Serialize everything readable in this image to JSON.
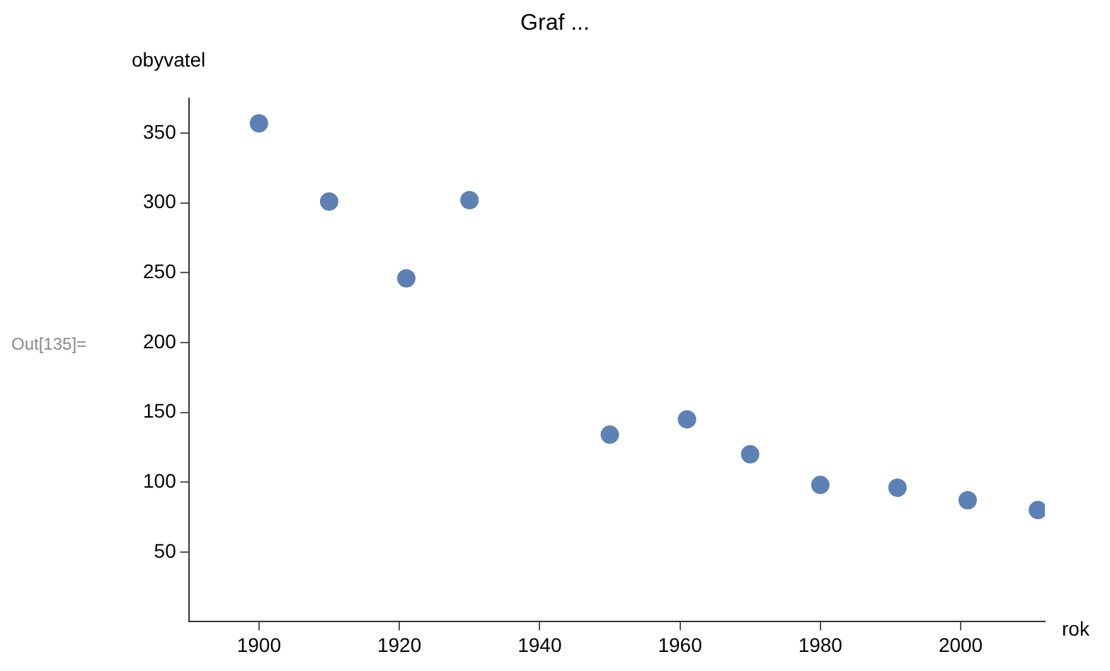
{
  "chart_data": {
    "type": "scatter",
    "title": "Graf ...",
    "xlabel": "rok",
    "ylabel": "obyvatel",
    "annotations": [
      "Out[135]="
    ],
    "x": [
      1900,
      1910,
      1921,
      1930,
      1950,
      1961,
      1970,
      1980,
      1991,
      2001,
      2011
    ],
    "series": [
      {
        "color": "#5e81b5",
        "values": [
          357,
          301,
          246,
          302,
          134,
          145,
          120,
          98,
          96,
          87,
          80
        ]
      }
    ],
    "xlim": [
      1890,
      2012
    ],
    "ylim": [
      0,
      375
    ],
    "xticks": [
      1900,
      1920,
      1940,
      1960,
      1980,
      2000
    ],
    "yticks": [
      50,
      100,
      150,
      200,
      250,
      300,
      350
    ],
    "grid": false,
    "legend": false,
    "marker": "circle"
  }
}
